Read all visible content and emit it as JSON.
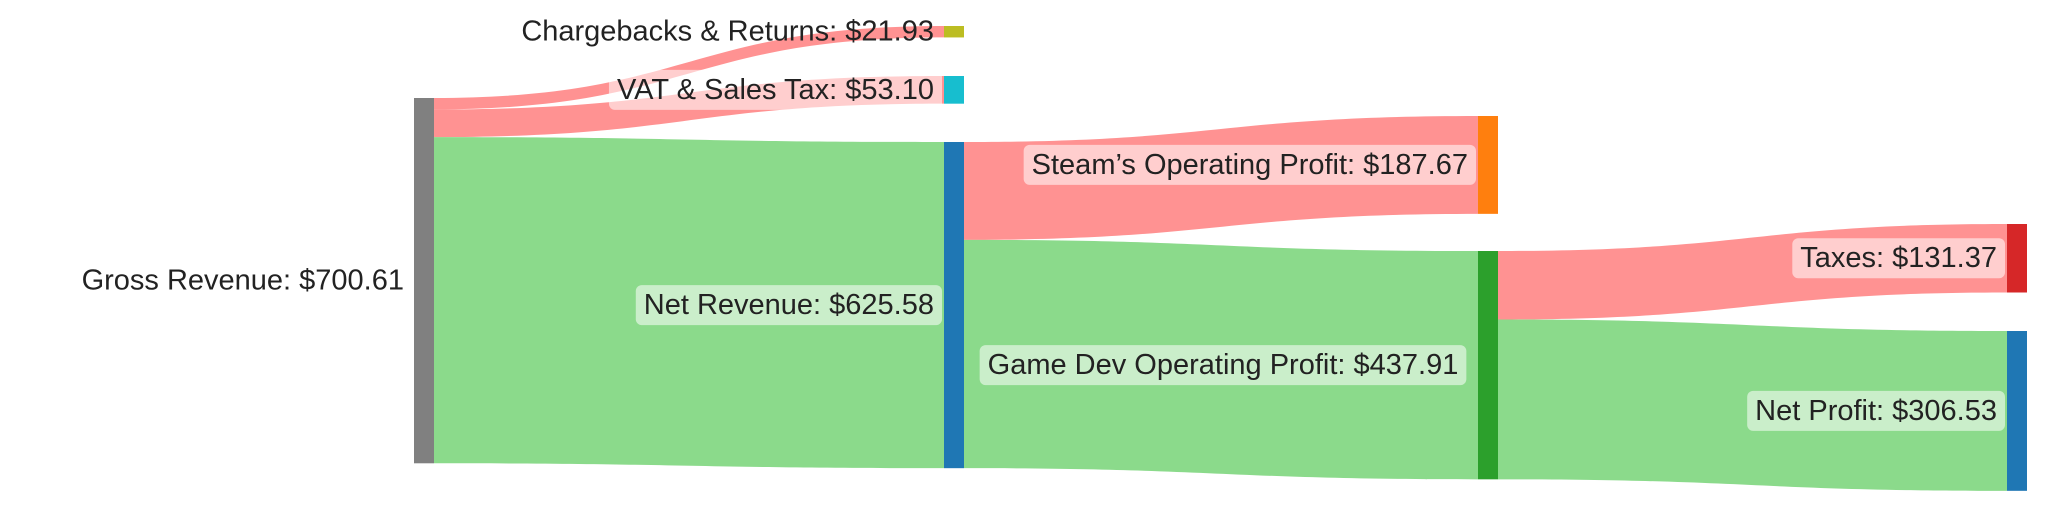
{
  "nodes": [
    {
      "id": "gross",
      "label": "Gross Revenue: $700.61",
      "value": 700.61,
      "color": "#808080"
    },
    {
      "id": "chargebacks",
      "label": "Chargebacks & Returns: $21.93",
      "value": 21.93,
      "color": "#bcbd22"
    },
    {
      "id": "vat",
      "label": "VAT & Sales Tax: $53.10",
      "value": 53.1,
      "color": "#17becf"
    },
    {
      "id": "net_revenue",
      "label": "Net Revenue: $625.58",
      "value": 625.58,
      "color": "#1f77b4"
    },
    {
      "id": "steam_profit",
      "label": "Steam’s Operating Profit: $187.67",
      "value": 187.67,
      "color": "#ff7f0e"
    },
    {
      "id": "gamedev_profit",
      "label": "Game Dev Operating Profit: $437.91",
      "value": 437.91,
      "color": "#2ca02c"
    },
    {
      "id": "taxes",
      "label": "Taxes: $131.37",
      "value": 131.37,
      "color": "#d62728"
    },
    {
      "id": "net_profit",
      "label": "Net Profit: $306.53",
      "value": 306.53,
      "color": "#1f77b4"
    }
  ],
  "links": [
    {
      "source": "gross",
      "target": "chargebacks",
      "value": 21.93,
      "kind": "loss"
    },
    {
      "source": "gross",
      "target": "vat",
      "value": 53.1,
      "kind": "loss"
    },
    {
      "source": "gross",
      "target": "net_revenue",
      "value": 625.58,
      "kind": "gain"
    },
    {
      "source": "net_revenue",
      "target": "steam_profit",
      "value": 187.67,
      "kind": "loss"
    },
    {
      "source": "net_revenue",
      "target": "gamedev_profit",
      "value": 437.91,
      "kind": "gain"
    },
    {
      "source": "gamedev_profit",
      "target": "taxes",
      "value": 131.37,
      "kind": "loss"
    },
    {
      "source": "gamedev_profit",
      "target": "net_profit",
      "value": 306.53,
      "kind": "gain"
    }
  ],
  "colors": {
    "loss_link": "#ff7f7f",
    "gain_link": "#77d477",
    "text": "#222222"
  }
}
